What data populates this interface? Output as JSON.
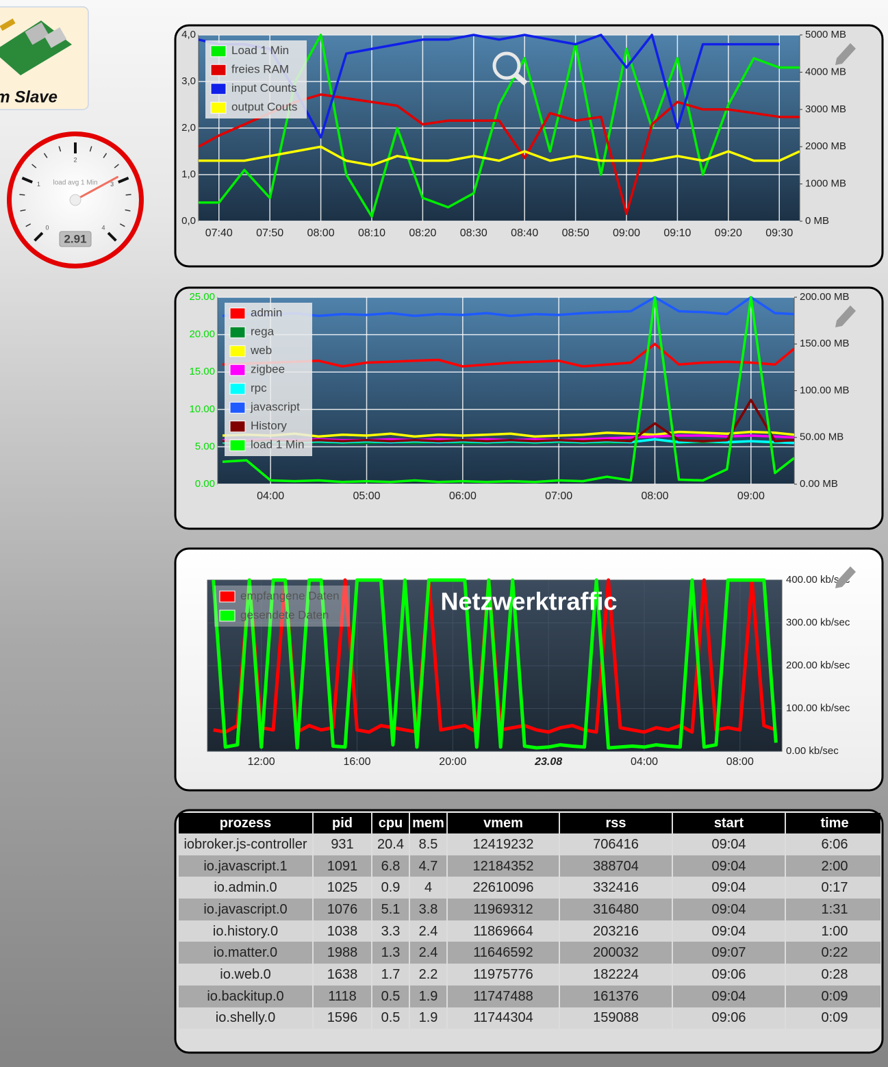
{
  "widget": {
    "title": "m Slave"
  },
  "gauge": {
    "label": "load avg 1 Min",
    "min": 0,
    "max": 4,
    "ticks": [
      0,
      1,
      2,
      3,
      4
    ],
    "value": 2.91
  },
  "chart_data": [
    {
      "type": "line",
      "legend": "upper left",
      "grid": true,
      "grid_color": "#ffffff",
      "ytick_color": "#222222",
      "x": [
        "07:36",
        "07:40",
        "07:45",
        "07:50",
        "07:55",
        "08:00",
        "08:05",
        "08:10",
        "08:15",
        "08:20",
        "08:25",
        "08:30",
        "08:35",
        "08:40",
        "08:45",
        "08:50",
        "08:55",
        "09:00",
        "09:05",
        "09:10",
        "09:15",
        "09:20",
        "09:25",
        "09:30",
        "09:34"
      ],
      "xlim": [
        "07:36",
        "09:34"
      ],
      "xticks": [
        "07:40",
        "07:50",
        "08:00",
        "08:10",
        "08:20",
        "08:30",
        "08:40",
        "08:50",
        "09:00",
        "09:10",
        "09:20",
        "09:30"
      ],
      "ylim": [
        0,
        4
      ],
      "yticks": [
        {
          "value": 0,
          "label": "0,0"
        },
        {
          "value": 1,
          "label": "1,0"
        },
        {
          "value": 2,
          "label": "2,0"
        },
        {
          "value": 3,
          "label": "3,0"
        },
        {
          "value": 4,
          "label": "4,0"
        }
      ],
      "y2lim": [
        0,
        5000
      ],
      "y2ticks": [
        {
          "value": 0,
          "label": "0 MB"
        },
        {
          "value": 1000,
          "label": "1000 MB"
        },
        {
          "value": 2000,
          "label": "2000 MB"
        },
        {
          "value": 3000,
          "label": "3000 MB"
        },
        {
          "value": 4000,
          "label": "4000 MB"
        },
        {
          "value": 5000,
          "label": "5000 MB"
        }
      ],
      "series": [
        {
          "name": "Load 1 Min",
          "color": "#00ee00",
          "values": [
            0.4,
            0.4,
            1.1,
            0.5,
            3.0,
            4.0,
            1.0,
            0.1,
            2.0,
            0.5,
            0.3,
            0.6,
            2.5,
            3.5,
            1.5,
            3.8,
            1.0,
            3.7,
            2.0,
            3.5,
            1.0,
            2.5,
            3.5,
            3.3,
            3.3
          ]
        },
        {
          "name": "freies RAM",
          "color": "#e00000",
          "axis": "y2",
          "values": [
            2000,
            2300,
            2600,
            2900,
            3200,
            3400,
            3300,
            3200,
            3100,
            2600,
            2700,
            2700,
            2700,
            1700,
            2900,
            2700,
            2800,
            200,
            2600,
            3200,
            3000,
            3000,
            2900,
            2800,
            2800
          ]
        },
        {
          "name": "input Counts",
          "color": "#1020e8",
          "values": [
            3.9,
            3.8,
            3.8,
            3.7,
            2.8,
            1.8,
            3.6,
            3.7,
            3.8,
            3.9,
            3.9,
            4.0,
            3.9,
            4.0,
            3.9,
            3.8,
            4.0,
            3.3,
            4.0,
            2.0,
            3.8,
            3.8,
            3.8,
            3.8,
            null
          ]
        },
        {
          "name": "output Couts",
          "color": "#ffff00",
          "values": [
            1.3,
            1.3,
            1.3,
            1.4,
            1.5,
            1.6,
            1.3,
            1.2,
            1.4,
            1.3,
            1.3,
            1.4,
            1.3,
            1.5,
            1.3,
            1.4,
            1.3,
            1.3,
            1.3,
            1.4,
            1.3,
            1.5,
            1.3,
            1.3,
            1.5
          ]
        }
      ]
    },
    {
      "type": "line",
      "legend": "upper left",
      "grid": true,
      "grid_color": "#ffffff",
      "ytick_color": "#00dd00",
      "x": [
        "03:30",
        "03:45",
        "04:00",
        "04:15",
        "04:30",
        "04:45",
        "05:00",
        "05:15",
        "05:30",
        "05:45",
        "06:00",
        "06:15",
        "06:30",
        "06:45",
        "07:00",
        "07:15",
        "07:30",
        "07:45",
        "08:00",
        "08:15",
        "08:30",
        "08:45",
        "09:00",
        "09:15",
        "09:27"
      ],
      "xlim": [
        "03:27",
        "09:27"
      ],
      "xticks": [
        "04:00",
        "05:00",
        "06:00",
        "07:00",
        "08:00",
        "09:00"
      ],
      "ylim": [
        0,
        25
      ],
      "yticks": [
        {
          "value": 0,
          "label": "0.00"
        },
        {
          "value": 5,
          "label": "5.00"
        },
        {
          "value": 10,
          "label": "10.00"
        },
        {
          "value": 15,
          "label": "15.00"
        },
        {
          "value": 20,
          "label": "20.00"
        },
        {
          "value": 25,
          "label": "25.00"
        }
      ],
      "y2lim": [
        0,
        200
      ],
      "y2ticks": [
        {
          "value": 0,
          "label": "0.00 MB"
        },
        {
          "value": 50,
          "label": "50.00 MB"
        },
        {
          "value": 100,
          "label": "100.00 MB"
        },
        {
          "value": 150,
          "label": "150.00 MB"
        },
        {
          "value": 200,
          "label": "200.00 MB"
        }
      ],
      "series": [
        {
          "name": "admin",
          "color": "#ff0000",
          "axis": "y2",
          "values": [
            128,
            129,
            130,
            131,
            132,
            126,
            130,
            131,
            132,
            133,
            126,
            128,
            130,
            131,
            132,
            126,
            128,
            130,
            150,
            128,
            130,
            131,
            130,
            128,
            145
          ]
        },
        {
          "name": "rega",
          "color": "#008a2e",
          "axis": "y2",
          "values": [
            44,
            44,
            45,
            44,
            45,
            44,
            44,
            45,
            44,
            45,
            44,
            44,
            45,
            44,
            45,
            44,
            44,
            45,
            48,
            44,
            45,
            44,
            46,
            44,
            45
          ]
        },
        {
          "name": "web",
          "color": "#ffff00",
          "axis": "y2",
          "values": [
            52,
            53,
            52,
            54,
            51,
            53,
            52,
            54,
            51,
            53,
            52,
            53,
            54,
            51,
            52,
            53,
            55,
            54,
            53,
            56,
            55,
            54,
            56,
            55,
            53
          ]
        },
        {
          "name": "zigbee",
          "color": "#ff00ff",
          "axis": "y2",
          "values": [
            47,
            47,
            48,
            47,
            48,
            47,
            47,
            48,
            47,
            48,
            47,
            48,
            47,
            48,
            47,
            48,
            49,
            50,
            51,
            52,
            52,
            51,
            52,
            51,
            50
          ]
        },
        {
          "name": "rpc",
          "color": "#00ffff",
          "axis": "y2",
          "values": [
            45,
            45,
            46,
            45,
            46,
            45,
            46,
            45,
            46,
            45,
            46,
            45,
            46,
            45,
            46,
            45,
            46,
            45,
            48,
            45,
            46,
            45,
            46,
            45,
            44
          ]
        },
        {
          "name": "javascript",
          "color": "#1e5aff",
          "axis": "y2",
          "values": [
            180,
            182,
            181,
            183,
            180,
            182,
            181,
            183,
            180,
            182,
            181,
            183,
            180,
            182,
            181,
            183,
            184,
            185,
            200,
            185,
            184,
            182,
            200,
            183,
            182
          ]
        },
        {
          "name": "History",
          "color": "#800000",
          "axis": "y2",
          "values": [
            46,
            46,
            47,
            46,
            47,
            46,
            47,
            46,
            47,
            46,
            47,
            46,
            47,
            46,
            47,
            46,
            47,
            46,
            65,
            47,
            46,
            47,
            90,
            46,
            47
          ]
        },
        {
          "name": "load 1 Min",
          "color": "#00ff00",
          "values": [
            3.0,
            3.2,
            0.5,
            0.4,
            0.5,
            0.3,
            0.4,
            0.3,
            0.5,
            0.3,
            0.4,
            0.3,
            0.4,
            0.3,
            0.5,
            0.4,
            1.0,
            0.5,
            25,
            0.6,
            0.5,
            2.0,
            25,
            1.5,
            3.5
          ]
        }
      ]
    },
    {
      "type": "line",
      "title": "Netzwerktraffic",
      "legend": "upper left",
      "grid": true,
      "grid_color": "#4a5a6a",
      "ytick_color": "#222222",
      "yaxis_position": "right",
      "categories": [
        null,
        null,
        null,
        null,
        "12:00",
        null,
        null,
        null,
        null,
        null,
        null,
        null,
        "16:00",
        null,
        null,
        null,
        null,
        null,
        null,
        null,
        "20:00",
        null,
        null,
        null,
        null,
        null,
        null,
        null,
        "23.08",
        null,
        null,
        null,
        null,
        null,
        null,
        null,
        "04:00",
        null,
        null,
        null,
        null,
        null,
        null,
        null,
        "08:00",
        null,
        null,
        null
      ],
      "ylim": [
        0,
        400
      ],
      "yticks": [
        {
          "value": 0,
          "label": "0.00 kb/sec"
        },
        {
          "value": 100,
          "label": "100.00 kb/sec"
        },
        {
          "value": 200,
          "label": "200.00 kb/sec"
        },
        {
          "value": 300,
          "label": "300.00 kb/sec"
        },
        {
          "value": 400,
          "label": "400.00 kb/sec"
        }
      ],
      "series": [
        {
          "name": "empfangene Daten",
          "color": "#ff0000",
          "values": [
            50,
            45,
            60,
            400,
            55,
            50,
            400,
            45,
            60,
            50,
            55,
            400,
            50,
            45,
            60,
            55,
            50,
            45,
            400,
            50,
            55,
            60,
            45,
            400,
            50,
            55,
            60,
            50,
            45,
            55,
            60,
            50,
            45,
            400,
            55,
            50,
            45,
            55,
            50,
            60,
            45,
            400,
            50,
            55,
            50,
            400,
            60,
            50
          ]
        },
        {
          "name": "gesendete Daten",
          "color": "#00ff00",
          "values": [
            400,
            10,
            15,
            400,
            10,
            400,
            400,
            8,
            400,
            400,
            12,
            10,
            400,
            400,
            400,
            15,
            400,
            10,
            400,
            400,
            400,
            400,
            10,
            400,
            10,
            400,
            12,
            8,
            10,
            15,
            12,
            10,
            400,
            8,
            10,
            12,
            10,
            15,
            12,
            10,
            400,
            10,
            15,
            400,
            400,
            400,
            400,
            20
          ]
        }
      ]
    }
  ],
  "table": {
    "header": [
      "prozess",
      "pid",
      "cpu",
      "mem",
      "vmem",
      "rss",
      "start",
      "time"
    ],
    "rows": [
      [
        "iobroker.js-controller",
        931,
        20.4,
        8.5,
        12419232,
        706416,
        "09:04",
        "6:06"
      ],
      [
        "io.javascript.1",
        1091,
        6.8,
        4.7,
        12184352,
        388704,
        "09:04",
        "2:00"
      ],
      [
        "io.admin.0",
        1025,
        0.9,
        4,
        22610096,
        332416,
        "09:04",
        "0:17"
      ],
      [
        "io.javascript.0",
        1076,
        5.1,
        3.8,
        11969312,
        316480,
        "09:04",
        "1:31"
      ],
      [
        "io.history.0",
        1038,
        3.3,
        2.4,
        11869664,
        203216,
        "09:04",
        "1:00"
      ],
      [
        "io.matter.0",
        1988,
        1.3,
        2.4,
        11646592,
        200032,
        "09:07",
        "0:22"
      ],
      [
        "io.web.0",
        1638,
        1.7,
        2.2,
        11975776,
        182224,
        "09:06",
        "0:28"
      ],
      [
        "io.backitup.0",
        1118,
        0.5,
        1.9,
        11747488,
        161376,
        "09:04",
        "0:09"
      ],
      [
        "io.shelly.0",
        1596,
        0.5,
        1.9,
        11744304,
        159088,
        "09:06",
        "0:09"
      ]
    ]
  }
}
